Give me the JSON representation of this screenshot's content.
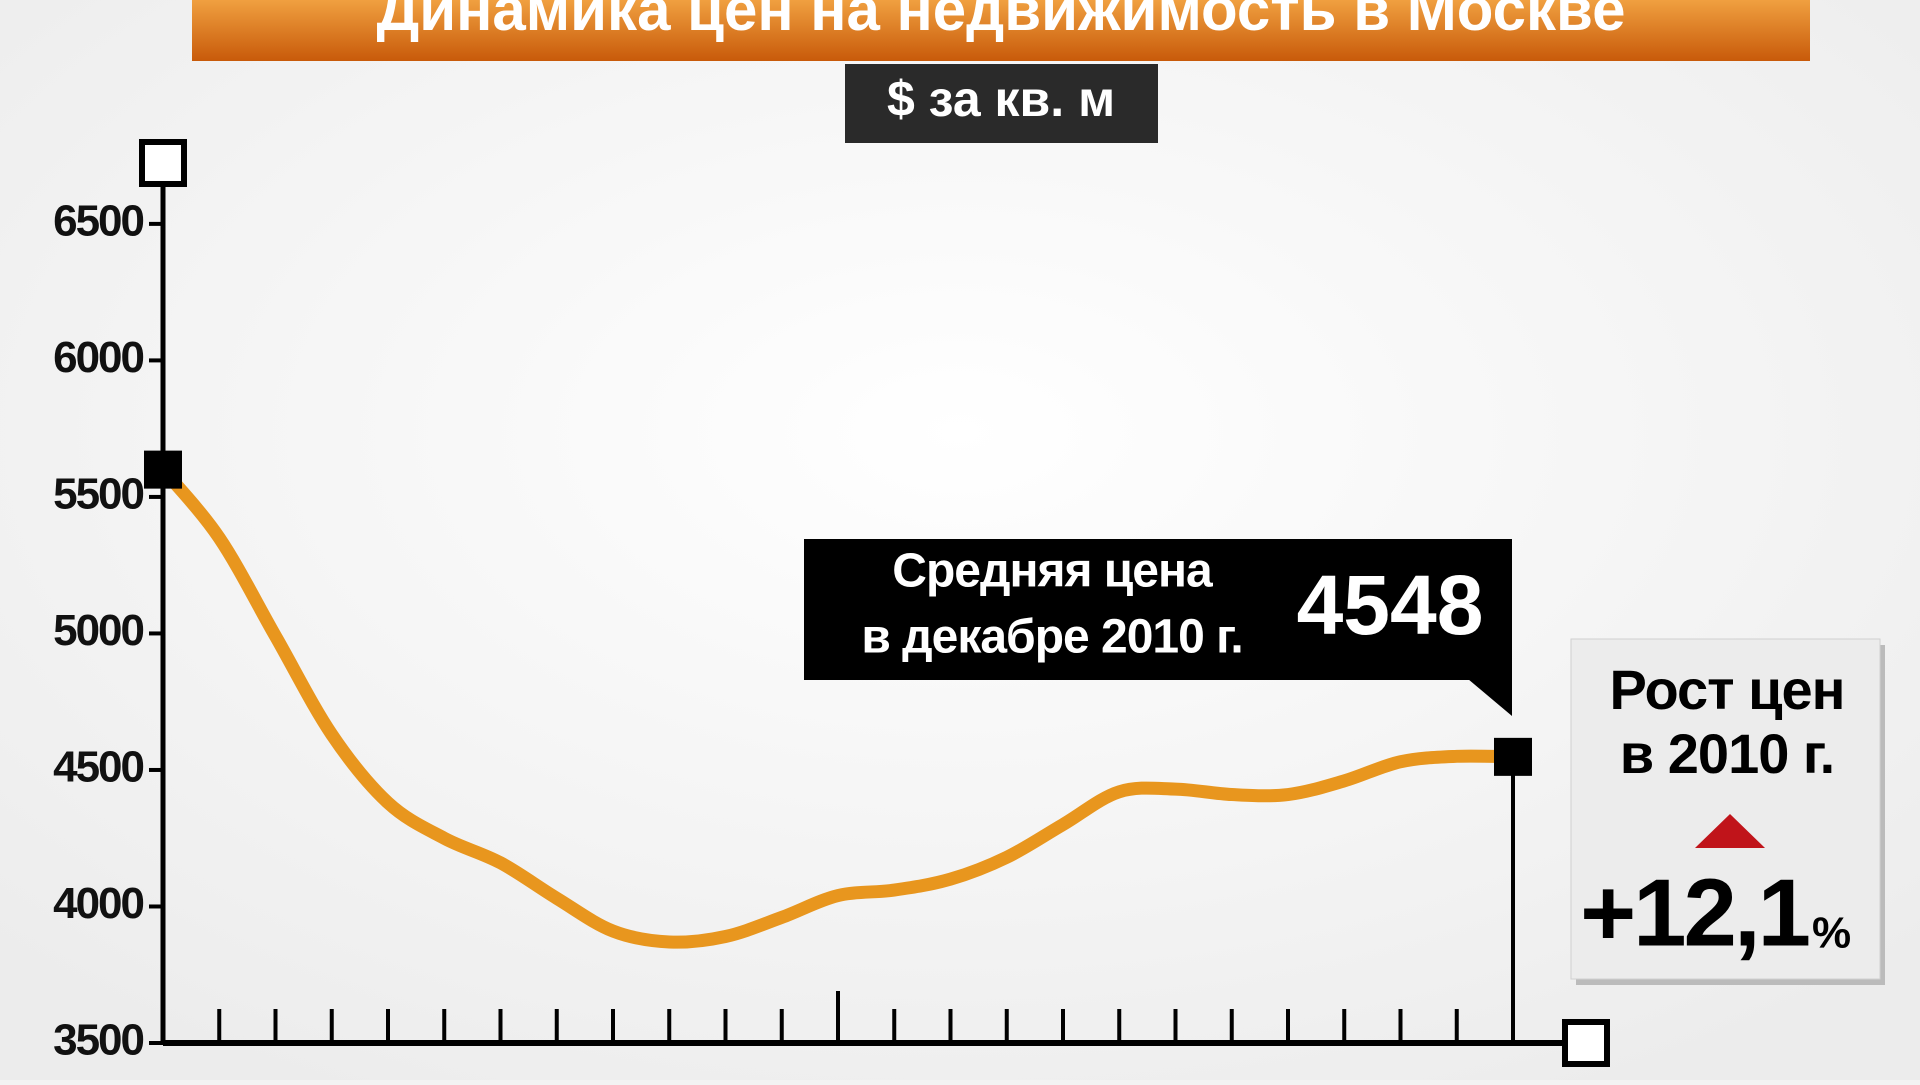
{
  "chart_data": {
    "type": "line",
    "title": "Динамика цен на недвижимость в Москве",
    "subtitle": "$ за кв. м",
    "categories": [
      null,
      null,
      null,
      null,
      null,
      null,
      null,
      null,
      null,
      null,
      null,
      null,
      null,
      null,
      null,
      null,
      null,
      null,
      null,
      null,
      null,
      null,
      null,
      null,
      null
    ],
    "series": [
      {
        "name": null,
        "color": "#e8961e",
        "values": [
          5600,
          5350,
          4990,
          4630,
          4380,
          4250,
          4160,
          4030,
          3910,
          3870,
          3890,
          3960,
          4040,
          4060,
          4100,
          4180,
          4300,
          4420,
          4430,
          4410,
          4410,
          4460,
          4530,
          4550,
          4548
        ]
      }
    ],
    "ylim": [
      3500,
      6723
    ],
    "yticks": [
      3500,
      4000,
      4500,
      5000,
      5500,
      6000,
      6500
    ],
    "annotation": "Средняя цена в декабре 2010 г.",
    "growth": {
      "label": "Рост цен в 2010 г.",
      "value": "+12,1",
      "unit": "%"
    }
  }
}
